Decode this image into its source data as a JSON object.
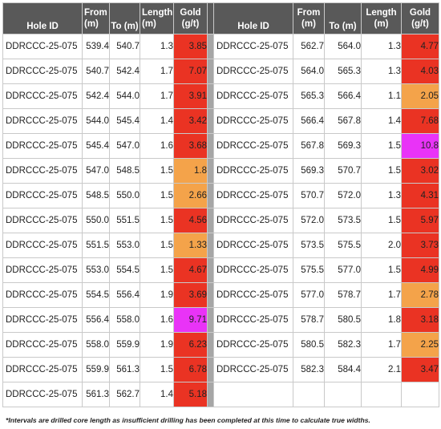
{
  "headers": {
    "hole_id": "Hole ID",
    "from": [
      "From",
      "(m)"
    ],
    "to": "To (m)",
    "length": [
      "Length",
      "(m)"
    ],
    "gold": [
      "Gold",
      "(g/t)"
    ]
  },
  "colors": {
    "red": "#ea3323",
    "orange": "#f4a34a",
    "magenta": "#e933f7",
    "header_bg": "#595959",
    "separator": "#a6a6a6"
  },
  "rows": [
    {
      "left": [
        "DDRCCC-25-075",
        "539.4",
        "540.7",
        "1.3",
        "3.85"
      ],
      "left_color": "red",
      "right": [
        "DDRCCC-25-075",
        "562.7",
        "564.0",
        "1.3",
        "4.77"
      ],
      "right_color": "red"
    },
    {
      "left": [
        "DDRCCC-25-075",
        "540.7",
        "542.4",
        "1.7",
        "7.07"
      ],
      "left_color": "red",
      "right": [
        "DDRCCC-25-075",
        "564.0",
        "565.3",
        "1.3",
        "4.03"
      ],
      "right_color": "red"
    },
    {
      "left": [
        "DDRCCC-25-075",
        "542.4",
        "544.0",
        "1.7",
        "3.91"
      ],
      "left_color": "red",
      "right": [
        "DDRCCC-25-075",
        "565.3",
        "566.4",
        "1.1",
        "2.05"
      ],
      "right_color": "orange"
    },
    {
      "left": [
        "DDRCCC-25-075",
        "544.0",
        "545.4",
        "1.4",
        "3.42"
      ],
      "left_color": "red",
      "right": [
        "DDRCCC-25-075",
        "566.4",
        "567.8",
        "1.4",
        "7.68"
      ],
      "right_color": "red"
    },
    {
      "left": [
        "DDRCCC-25-075",
        "545.4",
        "547.0",
        "1.6",
        "3.68"
      ],
      "left_color": "red",
      "right": [
        "DDRCCC-25-075",
        "567.8",
        "569.3",
        "1.5",
        "10.8"
      ],
      "right_color": "magenta"
    },
    {
      "left": [
        "DDRCCC-25-075",
        "547.0",
        "548.5",
        "1.5",
        "1.8"
      ],
      "left_color": "orange",
      "right": [
        "DDRCCC-25-075",
        "569.3",
        "570.7",
        "1.5",
        "3.02"
      ],
      "right_color": "red"
    },
    {
      "left": [
        "DDRCCC-25-075",
        "548.5",
        "550.0",
        "1.5",
        "2.66"
      ],
      "left_color": "orange",
      "right": [
        "DDRCCC-25-075",
        "570.7",
        "572.0",
        "1.3",
        "4.31"
      ],
      "right_color": "red"
    },
    {
      "left": [
        "DDRCCC-25-075",
        "550.0",
        "551.5",
        "1.5",
        "4.56"
      ],
      "left_color": "red",
      "right": [
        "DDRCCC-25-075",
        "572.0",
        "573.5",
        "1.5",
        "5.97"
      ],
      "right_color": "red"
    },
    {
      "left": [
        "DDRCCC-25-075",
        "551.5",
        "553.0",
        "1.5",
        "1.33"
      ],
      "left_color": "orange",
      "right": [
        "DDRCCC-25-075",
        "573.5",
        "575.5",
        "2.0",
        "3.73"
      ],
      "right_color": "red"
    },
    {
      "left": [
        "DDRCCC-25-075",
        "553.0",
        "554.5",
        "1.5",
        "4.67"
      ],
      "left_color": "red",
      "right": [
        "DDRCCC-25-075",
        "575.5",
        "577.0",
        "1.5",
        "4.99"
      ],
      "right_color": "red"
    },
    {
      "left": [
        "DDRCCC-25-075",
        "554.5",
        "556.4",
        "1.9",
        "3.69"
      ],
      "left_color": "red",
      "right": [
        "DDRCCC-25-075",
        "577.0",
        "578.7",
        "1.7",
        "2.78"
      ],
      "right_color": "orange"
    },
    {
      "left": [
        "DDRCCC-25-075",
        "556.4",
        "558.0",
        "1.6",
        "9.71"
      ],
      "left_color": "magenta",
      "right": [
        "DDRCCC-25-075",
        "578.7",
        "580.5",
        "1.8",
        "3.18"
      ],
      "right_color": "red"
    },
    {
      "left": [
        "DDRCCC-25-075",
        "558.0",
        "559.9",
        "1.9",
        "6.23"
      ],
      "left_color": "red",
      "right": [
        "DDRCCC-25-075",
        "580.5",
        "582.3",
        "1.7",
        "2.25"
      ],
      "right_color": "orange"
    },
    {
      "left": [
        "DDRCCC-25-075",
        "559.9",
        "561.3",
        "1.5",
        "6.78"
      ],
      "left_color": "red",
      "right": [
        "DDRCCC-25-075",
        "582.3",
        "584.4",
        "2.1",
        "3.47"
      ],
      "right_color": "red"
    },
    {
      "left": [
        "DDRCCC-25-075",
        "561.3",
        "562.7",
        "1.4",
        "5.18"
      ],
      "left_color": "red",
      "right": null,
      "right_color": null
    }
  ],
  "footnote": "*Intervals are drilled core length as insufficient drilling has been completed at this time to calculate true widths."
}
